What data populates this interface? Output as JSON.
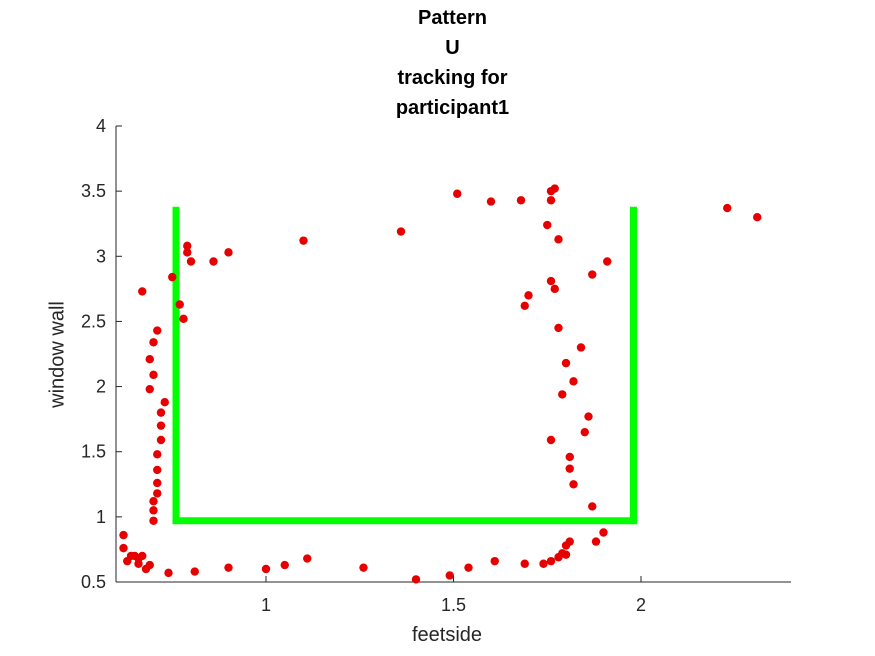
{
  "chart_data": {
    "type": "scatter",
    "title_lines": [
      "Pattern",
      "U",
      "tracking for",
      "participant1"
    ],
    "xlabel": "feetside",
    "ylabel": "window wall",
    "xlim": [
      0.6,
      2.4
    ],
    "ylim": [
      0.5,
      4
    ],
    "xticks": [
      1,
      1.5,
      2
    ],
    "yticks": [
      0.5,
      1,
      1.5,
      2,
      2.5,
      3,
      3.5,
      4
    ],
    "xtick_labels": [
      "1",
      "1.5",
      "2"
    ],
    "ytick_labels": [
      "0.5",
      "1",
      "1.5",
      "2",
      "2.5",
      "3",
      "3.5",
      "4"
    ],
    "grid": false,
    "pattern_color": "#00ff00",
    "point_color": "#e60000",
    "pattern_path": {
      "x": [
        0.76,
        0.76,
        1.98,
        1.98
      ],
      "y": [
        3.38,
        0.97,
        0.97,
        3.38
      ]
    },
    "points": {
      "x": [
        0.62,
        0.62,
        0.63,
        0.64,
        0.66,
        0.66,
        0.65,
        0.67,
        0.68,
        0.69,
        0.7,
        0.7,
        0.7,
        0.71,
        0.71,
        0.71,
        0.71,
        0.72,
        0.72,
        0.72,
        0.73,
        0.69,
        0.69,
        0.7,
        0.71,
        0.7,
        0.67,
        0.75,
        0.77,
        0.78,
        0.8,
        0.79,
        0.79,
        0.86,
        0.9,
        0.74,
        0.81,
        0.9,
        1.0,
        1.05,
        1.11,
        1.26,
        1.4,
        1.49,
        1.54,
        1.61,
        1.69,
        1.74,
        1.76,
        1.78,
        1.79,
        1.8,
        1.81,
        1.8,
        1.88,
        1.9,
        1.87,
        1.82,
        1.85,
        1.86,
        1.81,
        1.81,
        1.76,
        1.79,
        1.82,
        1.8,
        1.84,
        1.78,
        1.87,
        1.91,
        1.77,
        1.76,
        1.7,
        1.69,
        1.78,
        1.75,
        1.76,
        1.77,
        1.76,
        1.68,
        1.6,
        1.51,
        1.36,
        1.1,
        2.23,
        2.31
      ],
      "y": [
        0.86,
        0.76,
        0.66,
        0.7,
        0.64,
        0.68,
        0.7,
        0.7,
        0.6,
        0.63,
        0.97,
        1.05,
        1.12,
        1.18,
        1.26,
        1.36,
        1.48,
        1.59,
        1.7,
        1.8,
        1.88,
        1.98,
        2.21,
        2.34,
        2.43,
        2.09,
        2.73,
        2.84,
        2.63,
        2.52,
        2.96,
        3.03,
        3.08,
        2.96,
        3.03,
        0.57,
        0.58,
        0.61,
        0.6,
        0.63,
        0.68,
        0.61,
        0.52,
        0.55,
        0.61,
        0.66,
        0.64,
        0.64,
        0.66,
        0.69,
        0.72,
        0.78,
        0.81,
        0.71,
        0.81,
        0.88,
        1.08,
        1.25,
        1.65,
        1.77,
        1.37,
        1.46,
        1.59,
        1.94,
        2.04,
        2.18,
        2.3,
        2.45,
        2.86,
        2.96,
        2.75,
        2.81,
        2.7,
        2.62,
        3.13,
        3.24,
        3.5,
        3.52,
        3.43,
        3.43,
        3.42,
        3.48,
        3.19,
        3.12,
        3.37,
        3.3
      ]
    }
  }
}
